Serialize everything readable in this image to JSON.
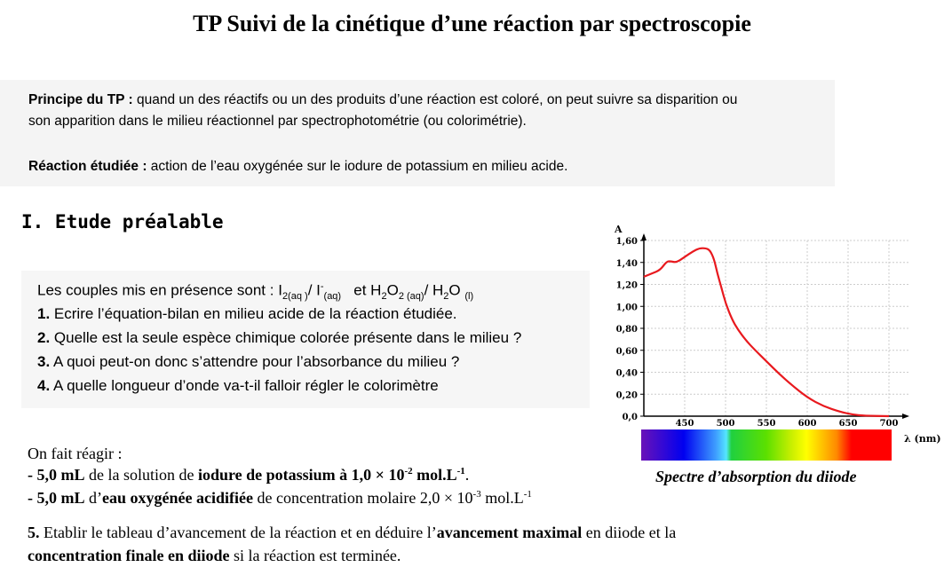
{
  "title": "TP  Suivi de la cinétique d’une réaction par spectroscopie",
  "principe": {
    "label": "Principe du TP :",
    "text1": " quand un des réactifs ou un des produits d’une réaction est coloré, on peut suivre sa disparition ou",
    "text2": "son apparition dans le milieu réactionnel par spectrophotométrie (ou colorimétrie)."
  },
  "reaction": {
    "label": "Réaction étudiée :",
    "text": " action de l’eau oxygénée sur le iodure de potassium en milieu acide."
  },
  "section": "I. Etude préalable",
  "couples": {
    "intro": "Les couples mis en présence sont : I",
    "s1": "2(aq )",
    "m1": "/ I",
    "sup1": "-",
    "s2": "(aq)",
    "m2": "   et H",
    "s3": "2",
    "m3": "O",
    "s4": "2 (aq)",
    "m4": "/ H",
    "s5": "2",
    "m5": "O ",
    "s6": "(l)"
  },
  "questions": [
    {
      "num": "1.",
      "text": " Ecrire l’équation-bilan en milieu acide de la réaction étudiée."
    },
    {
      "num": "2.",
      "text": " Quelle est la seule espèce chimique colorée présente dans le milieu ?"
    },
    {
      "num": "3.",
      "text": " A quoi peut-on donc s’attendre pour l’absorbance du milieu ?"
    },
    {
      "num": "4.",
      "text": " A quelle longueur d’onde va-t-il falloir régler le colorimètre"
    }
  ],
  "reagents": {
    "intro": "On fait réagir :",
    "l1": {
      "b1": "- 5,0 mL",
      "t1": " de la solution de ",
      "b2": "iodure de potassium à 1,0 × 10",
      "e1": "-2",
      "b3": " mol.L",
      "e2": "-1",
      "t2": "."
    },
    "l2": {
      "b1": "- 5,0 mL",
      "t1": " d’",
      "b2": "eau oxygénée acidifiée",
      "t2": " de concentration molaire 2,0 × 10",
      "e1": "-3",
      "t3": " mol.L",
      "e2": "-1"
    }
  },
  "q5": {
    "num": "5.",
    "t1": " Etablir le tableau d’avancement de la réaction et en déduire l’",
    "b1": "avancement maximal",
    "t2": " en diiode et la",
    "b2": "concentration finale en diiode",
    "t3": " si la réaction est terminée."
  },
  "chart_data": {
    "type": "line",
    "title": "Spectre d’absorption du diiode",
    "xlabel": "λ (nm)",
    "ylabel": "A",
    "xlim": [
      400,
      710
    ],
    "ylim": [
      0,
      1.6
    ],
    "xticks": [
      "450",
      "500",
      "550",
      "600",
      "650",
      "700"
    ],
    "yticks": [
      "0,0",
      "0,20",
      "0,40",
      "0,60",
      "0,80",
      "1,00",
      "1,20",
      "1,40",
      "1,60"
    ],
    "grid": true,
    "color": "#e8191e",
    "x": [
      400,
      410,
      420,
      428,
      433,
      440,
      450,
      460,
      468,
      476,
      481,
      486,
      490,
      495,
      500,
      508,
      515,
      525,
      535,
      550,
      565,
      580,
      600,
      620,
      640,
      655,
      670,
      700
    ],
    "y": [
      1.27,
      1.3,
      1.33,
      1.41,
      1.41,
      1.4,
      1.45,
      1.5,
      1.53,
      1.53,
      1.51,
      1.43,
      1.3,
      1.17,
      1.03,
      0.88,
      0.79,
      0.69,
      0.61,
      0.5,
      0.39,
      0.29,
      0.17,
      0.09,
      0.04,
      0.015,
      0.004,
      0.0
    ]
  }
}
